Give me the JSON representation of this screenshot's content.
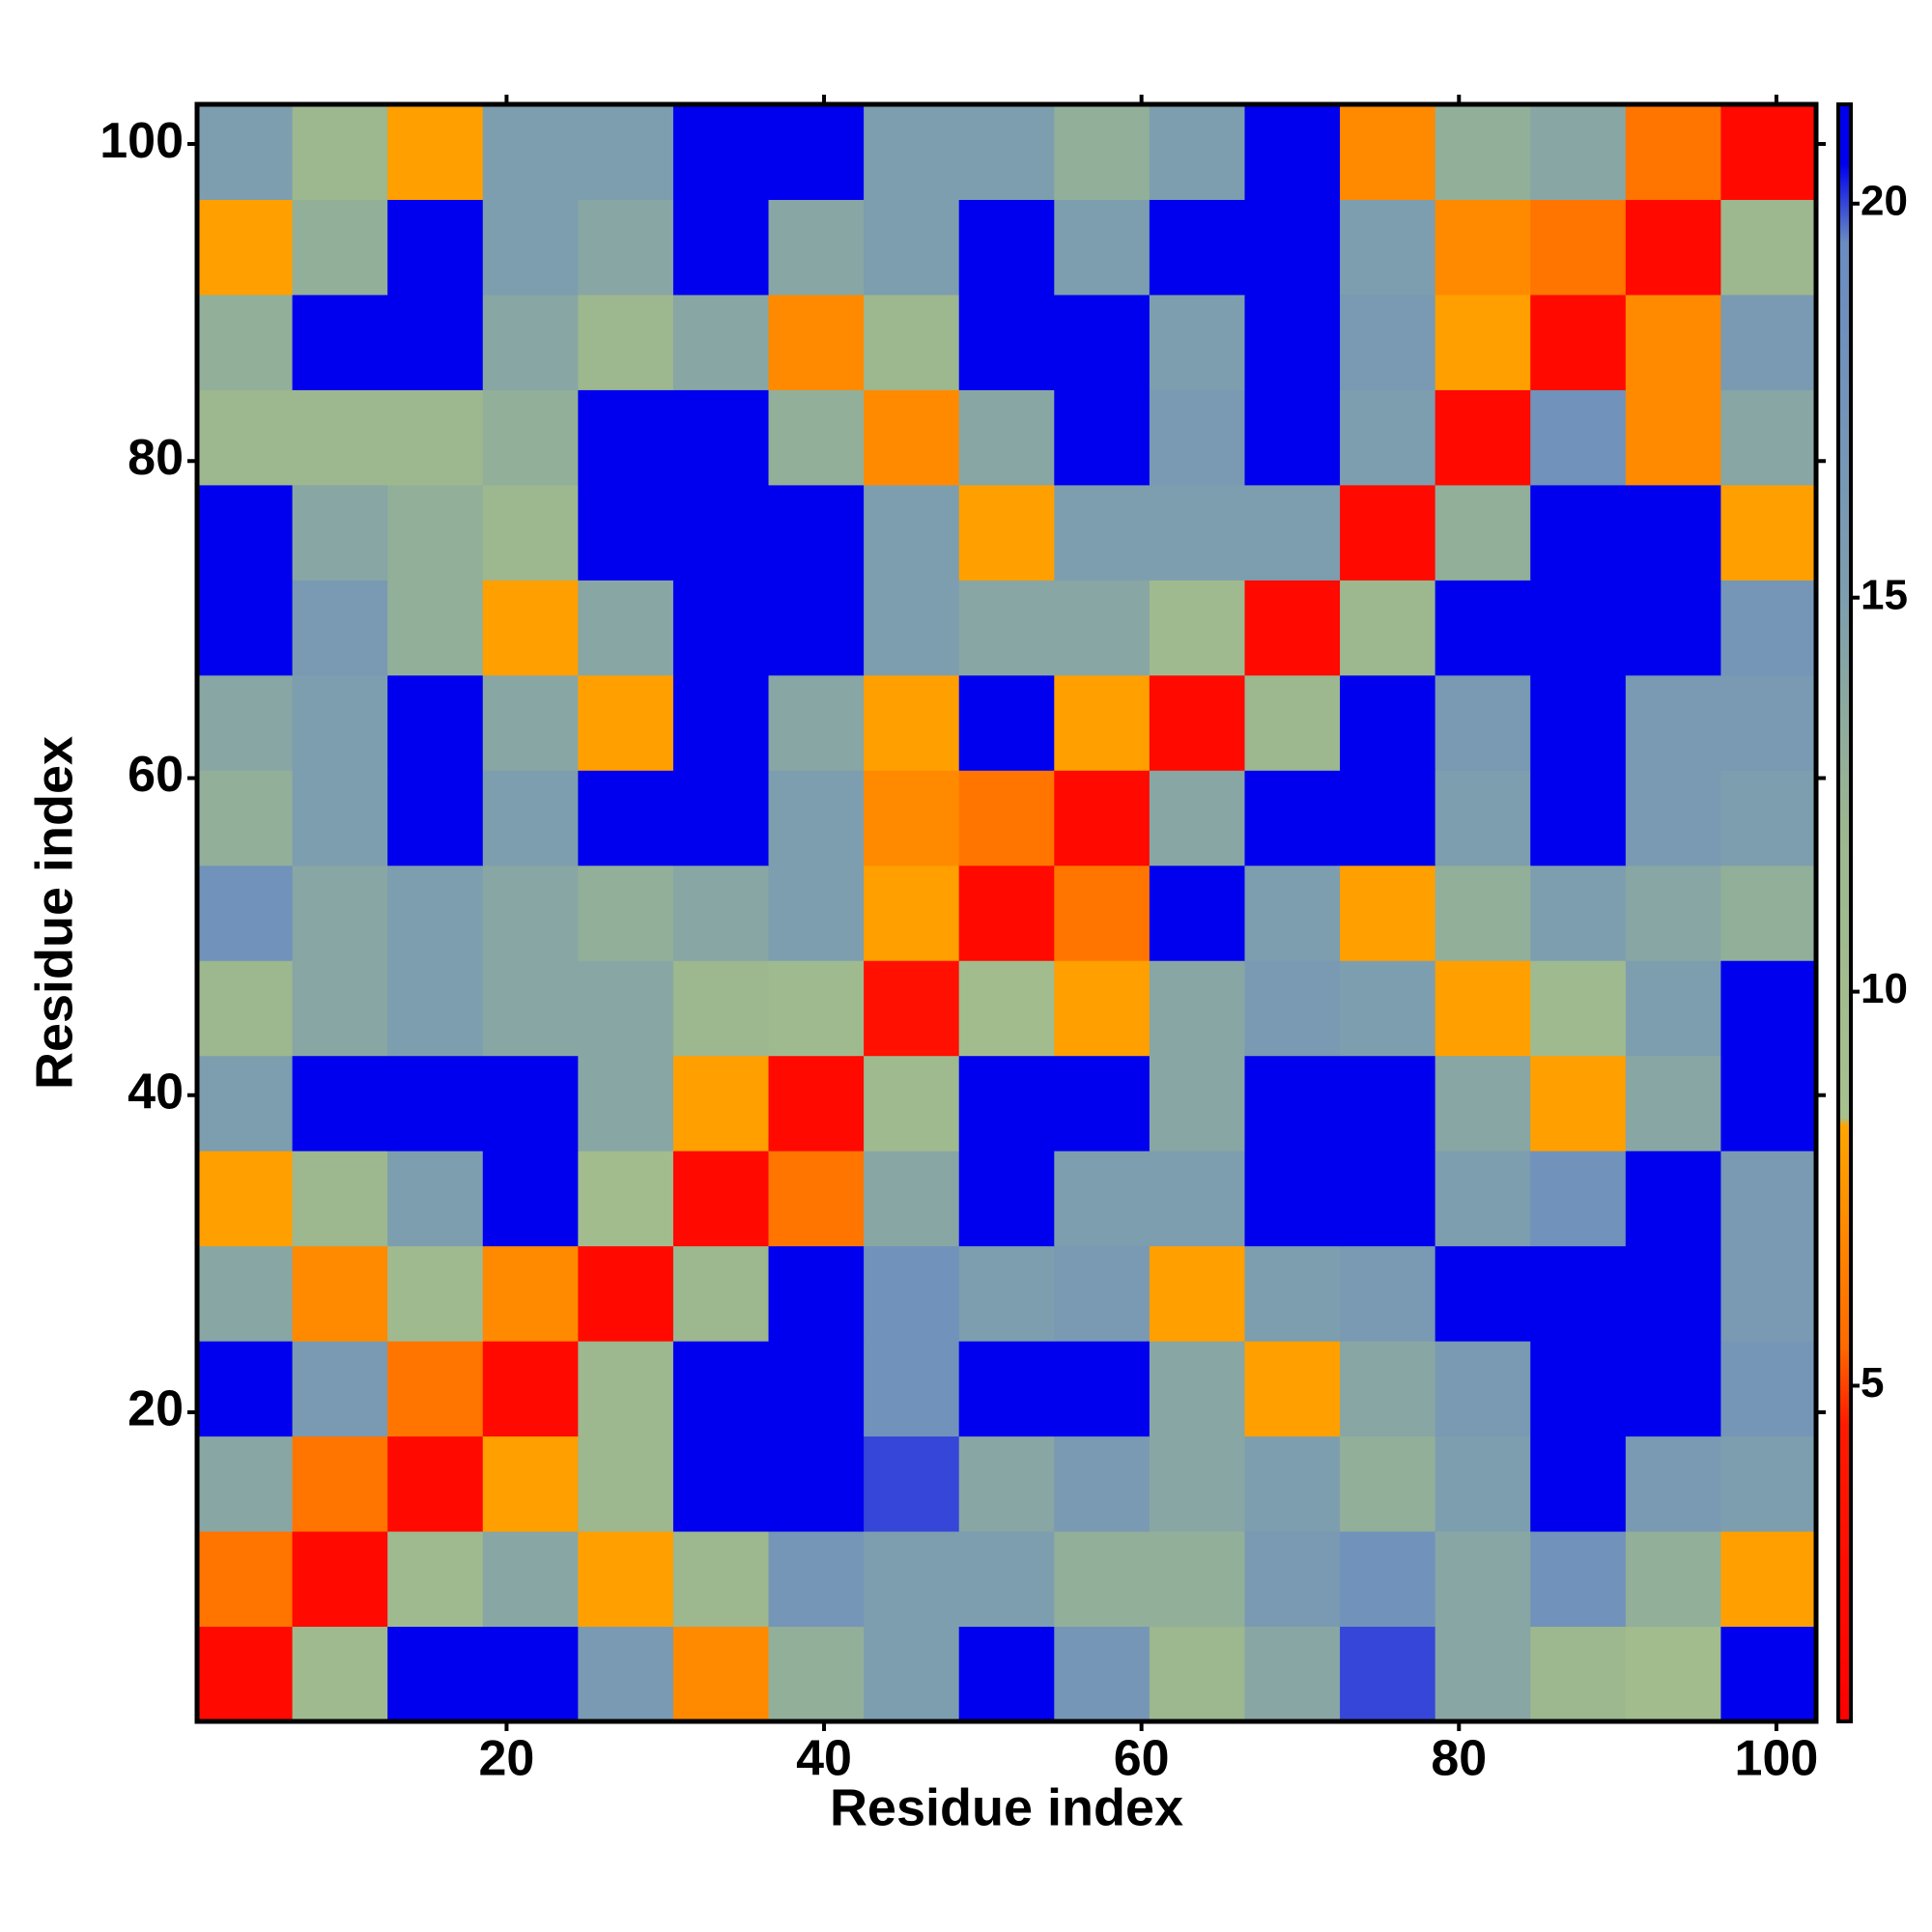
{
  "chart_data": {
    "type": "heatmap",
    "xlabel": "Residue index",
    "ylabel": "Residue index",
    "x_bins": [
      0.5,
      6.5,
      12.5,
      18.5,
      24.5,
      30.5,
      36.5,
      42.5,
      48.5,
      54.5,
      60.5,
      66.5,
      72.5,
      78.5,
      84.5,
      90.5,
      96.5,
      102.5
    ],
    "y_bins": [
      0.5,
      6.5,
      12.5,
      18.5,
      24.5,
      30.5,
      36.5,
      42.5,
      48.5,
      54.5,
      60.5,
      66.5,
      72.5,
      78.5,
      84.5,
      90.5,
      96.5,
      102.5
    ],
    "z": [
      [
        2,
        11,
        21,
        21,
        16,
        7,
        13,
        15,
        21,
        17,
        12,
        14,
        20,
        14,
        12,
        10,
        21
      ],
      [
        6,
        2,
        11,
        14,
        8,
        12,
        17,
        15,
        15,
        13,
        13,
        16,
        18,
        14,
        18,
        13,
        8
      ],
      [
        14,
        6,
        2,
        8,
        12,
        21,
        21,
        20,
        14,
        16,
        14,
        15,
        13,
        15,
        21,
        16,
        15
      ],
      [
        21,
        16,
        6,
        2,
        12,
        21,
        21,
        18,
        21,
        21,
        14,
        8,
        14,
        16,
        21,
        21,
        17
      ],
      [
        14,
        7,
        11,
        7,
        2,
        12,
        21,
        18,
        15,
        16,
        8,
        15,
        16,
        21,
        21,
        21,
        16
      ],
      [
        8,
        12,
        15,
        21,
        10,
        2,
        6,
        14,
        21,
        15,
        15,
        21,
        21,
        15,
        18,
        21,
        16
      ],
      [
        15,
        21,
        21,
        21,
        14,
        8,
        2,
        11,
        21,
        21,
        14,
        21,
        21,
        14,
        8,
        14,
        21
      ],
      [
        12,
        14,
        15,
        14,
        14,
        12,
        11,
        3,
        10,
        8,
        14,
        16,
        15,
        8,
        11,
        15,
        21
      ],
      [
        18,
        14,
        15,
        14,
        13,
        14,
        15,
        8,
        2,
        6,
        21,
        15,
        8,
        13,
        15,
        14,
        13
      ],
      [
        13,
        15,
        21,
        15,
        21,
        21,
        15,
        7,
        6,
        2,
        14,
        21,
        21,
        15,
        21,
        16,
        15
      ],
      [
        14,
        15,
        21,
        14,
        8,
        21,
        14,
        8,
        21,
        8,
        2,
        12,
        21,
        16,
        21,
        16,
        16
      ],
      [
        21,
        16,
        13,
        8,
        14,
        21,
        21,
        15,
        14,
        14,
        11,
        2,
        12,
        21,
        21,
        21,
        17
      ],
      [
        21,
        14,
        13,
        12,
        21,
        21,
        21,
        15,
        8,
        15,
        15,
        15,
        2,
        13,
        21,
        21,
        8
      ],
      [
        12,
        12,
        12,
        13,
        21,
        21,
        13,
        7,
        14,
        21,
        16,
        21,
        15,
        2,
        18,
        7,
        14
      ],
      [
        13,
        21,
        21,
        14,
        12,
        14,
        7,
        12,
        21,
        21,
        15,
        21,
        16,
        8,
        2,
        7,
        16
      ],
      [
        8,
        13,
        21,
        15,
        14,
        21,
        14,
        15,
        21,
        15,
        21,
        21,
        15,
        7,
        6,
        2,
        12
      ],
      [
        15,
        12,
        8,
        15,
        15,
        21,
        21,
        15,
        15,
        13,
        15,
        21,
        7,
        13,
        14,
        6,
        2
      ]
    ],
    "xlim": [
      0.5,
      102.5
    ],
    "ylim": [
      0.5,
      102.5
    ],
    "xticks": [
      20,
      40,
      60,
      80,
      100
    ],
    "yticks": [
      20,
      40,
      60,
      80,
      100
    ],
    "clim": [
      0.74,
      21.26
    ],
    "cticks": [
      5,
      10,
      15,
      20
    ],
    "colorscale": [
      [
        0.74,
        "#ff0000"
      ],
      [
        4.5,
        "#ff1a00"
      ],
      [
        5.5,
        "#ff6a00"
      ],
      [
        8.3,
        "#ffa500"
      ],
      [
        8.4,
        "#a6c08e"
      ],
      [
        12,
        "#9db78f"
      ],
      [
        15,
        "#7d9eae"
      ],
      [
        19.5,
        "#6a8cc2"
      ],
      [
        20.5,
        "#0000ee"
      ],
      [
        21.26,
        "#0000ee"
      ]
    ]
  }
}
